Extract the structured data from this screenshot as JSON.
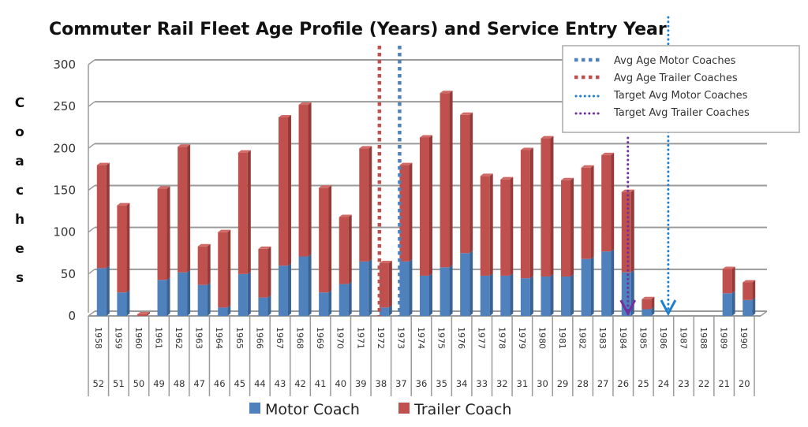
{
  "chart_data": {
    "type": "bar",
    "stacked": true,
    "title": "Commuter Rail Fleet Age Profile (Years) and Service Entry Year",
    "xlabel": "",
    "ylabel": "Coaches",
    "ylim": [
      0,
      300
    ],
    "yticks": [
      0,
      50,
      100,
      150,
      200,
      250,
      300
    ],
    "grid": true,
    "categories": [
      "1958",
      "1959",
      "1960",
      "1961",
      "1962",
      "1963",
      "1964",
      "1965",
      "1966",
      "1967",
      "1968",
      "1969",
      "1970",
      "1971",
      "1972",
      "1973",
      "1974",
      "1975",
      "1976",
      "1977",
      "1978",
      "1979",
      "1980",
      "1981",
      "1982",
      "1983",
      "1984",
      "1985",
      "1986",
      "1987",
      "1988",
      "1989",
      "1990"
    ],
    "ages": [
      "52",
      "51",
      "50",
      "49",
      "48",
      "47",
      "46",
      "45",
      "44",
      "43",
      "42",
      "41",
      "40",
      "39",
      "38",
      "37",
      "36",
      "35",
      "34",
      "33",
      "32",
      "31",
      "30",
      "29",
      "28",
      "27",
      "26",
      "25",
      "24",
      "23",
      "22",
      "21",
      "20"
    ],
    "series": [
      {
        "name": "Motor Coach",
        "color": "#4f81bd",
        "values": [
          57,
          28,
          0,
          43,
          52,
          37,
          10,
          50,
          22,
          60,
          71,
          28,
          38,
          65,
          10,
          65,
          48,
          58,
          75,
          48,
          48,
          45,
          47,
          47,
          68,
          77,
          52,
          8,
          0,
          0,
          0,
          27,
          19
        ]
      },
      {
        "name": "Trailer Coach",
        "color": "#c0504d",
        "values": [
          123,
          104,
          2,
          109,
          150,
          46,
          90,
          145,
          58,
          177,
          181,
          125,
          80,
          135,
          53,
          115,
          165,
          208,
          165,
          119,
          115,
          153,
          165,
          115,
          109,
          115,
          96,
          12,
          0,
          0,
          0,
          29,
          21
        ]
      }
    ],
    "reference_lines": [
      {
        "name": "Avg Age Motor Coaches",
        "category": "1973",
        "color": "#4f81bd",
        "style": "square-dot"
      },
      {
        "name": "Avg Age Trailer Coaches",
        "category": "1972",
        "color": "#c0504d",
        "style": "square-dot"
      },
      {
        "name": "Target Avg Motor Coaches",
        "category": "1986",
        "color": "#1f7fd0",
        "style": "round-dot-arrow"
      },
      {
        "name": "Target Avg Trailer Coaches",
        "category": "1984",
        "color": "#7030a0",
        "style": "round-dot-arrow"
      }
    ],
    "legend_bottom": [
      "Motor Coach",
      "Trailer Coach"
    ],
    "legend_lines_placement": "top-right",
    "legend_series_placement": "bottom"
  }
}
